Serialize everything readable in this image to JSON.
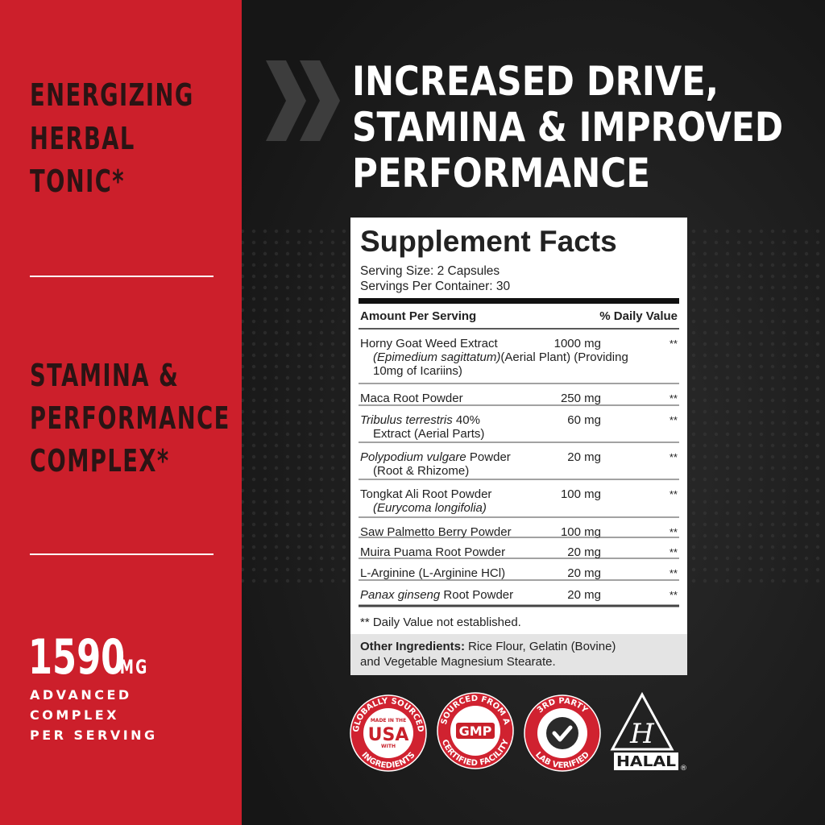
{
  "sidebar": {
    "features": [
      {
        "lines": [
          "ENERGIZING",
          "HERBAL",
          "TONIC*"
        ]
      },
      {
        "lines": [
          "STAMINA &",
          "PERFORMANCE",
          "COMPLEX*"
        ]
      }
    ],
    "amount": "1590",
    "unit": "MG",
    "caption": [
      "ADVANCED",
      "COMPLEX",
      "PER SERVING"
    ]
  },
  "headline": [
    "INCREASED DRIVE,",
    "STAMINA & IMPROVED",
    "PERFORMANCE"
  ],
  "facts": {
    "title": "Supplement Facts",
    "serving_size": "Serving Size: 2 Capsules",
    "servings_per_container": "Servings Per Container: 30",
    "header": {
      "amount": "Amount Per Serving",
      "daily_value": "% Daily Value"
    },
    "rows": [
      {
        "lines": [
          [
            {
              "text": "Horny Goat Weed Extract"
            }
          ],
          [
            {
              "text": "(Epimedium sagittatum)",
              "italic": true
            },
            {
              "text": "(Aerial Plant) (Providing"
            }
          ],
          [
            {
              "text": "10mg of Icariins)"
            }
          ]
        ],
        "amount": "1000 mg",
        "dv": "**"
      },
      {
        "lines": [
          [
            {
              "text": "Maca Root Powder"
            }
          ]
        ],
        "amount": "250 mg",
        "dv": "**"
      },
      {
        "lines": [
          [
            {
              "text": "Tribulus terrestris",
              "italic": true
            },
            {
              "text": " 40%"
            }
          ],
          [
            {
              "text": "Extract (Aerial Parts)"
            }
          ]
        ],
        "amount": "60 mg",
        "dv": "**"
      },
      {
        "lines": [
          [
            {
              "text": "Polypodium vulgare",
              "italic": true
            },
            {
              "text": " Powder"
            }
          ],
          [
            {
              "text": "(Root & Rhizome)"
            }
          ]
        ],
        "amount": "20 mg",
        "dv": "**"
      },
      {
        "lines": [
          [
            {
              "text": "Tongkat Ali Root Powder"
            }
          ],
          [
            {
              "text": "(Eurycoma longifolia)",
              "italic": true
            }
          ]
        ],
        "amount": "100 mg",
        "dv": "**"
      },
      {
        "lines": [
          [
            {
              "text": "Saw Palmetto Berry Powder"
            }
          ]
        ],
        "amount": "100 mg",
        "dv": "**"
      },
      {
        "lines": [
          [
            {
              "text": "Muira Puama Root Powder"
            }
          ]
        ],
        "amount": "20 mg",
        "dv": "**"
      },
      {
        "lines": [
          [
            {
              "text": "L-Arginine (L-Arginine HCl)"
            }
          ]
        ],
        "amount": "20 mg",
        "dv": "**"
      },
      {
        "lines": [
          [
            {
              "text": "Panax ginseng",
              "italic": true
            },
            {
              "text": " Root Powder"
            }
          ]
        ],
        "amount": "20 mg",
        "dv": "**"
      }
    ],
    "footnote": "** Daily Value not established.",
    "other_label": "Other Ingredients:",
    "other_text": [
      "Rice Flour, Gelatin (Bovine)",
      "and Vegetable Magnesium Stearate."
    ]
  },
  "badges": [
    {
      "ring_top": "GLOBALLY SOURCED",
      "ring_bottom": "INGREDIENTS",
      "center": [
        "MADE IN THE",
        "USA",
        "WITH"
      ]
    },
    {
      "ring_top": "SOURCED FROM A",
      "ring_bottom": "CERTIFIED FACILITY",
      "center": [
        "GMP"
      ]
    },
    {
      "ring_top": "3RD PARTY",
      "ring_bottom": "LAB VERIFIED"
    }
  ],
  "halal": {
    "letter": "H",
    "label": "HALAL",
    "mark": "®"
  }
}
